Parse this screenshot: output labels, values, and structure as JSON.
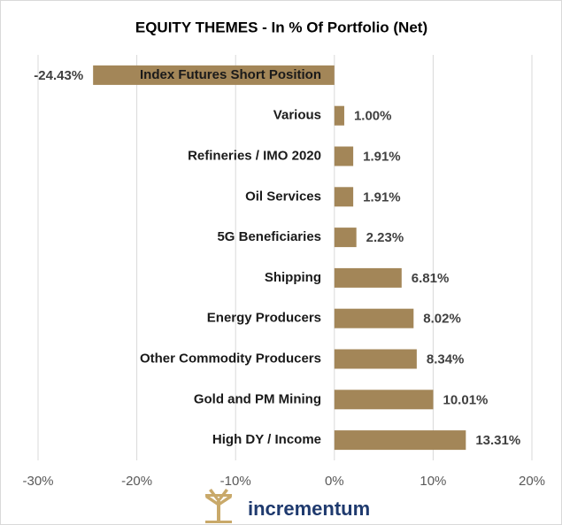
{
  "chart_data": {
    "type": "bar",
    "orientation": "horizontal",
    "title": "EQUITY THEMES - In % Of Portfolio (Net)",
    "categories": [
      "Index Futures Short Position",
      "Various",
      "Refineries / IMO 2020",
      "Oil Services",
      "5G Beneficiaries",
      "Shipping",
      "Energy Producers",
      "Other Commodity Producers",
      "Gold and PM Mining",
      "High DY / Income"
    ],
    "values": [
      -24.43,
      1.0,
      1.91,
      1.91,
      2.23,
      6.81,
      8.02,
      8.34,
      10.01,
      13.31
    ],
    "value_labels": [
      "-24.43%",
      "1.00%",
      "1.91%",
      "1.91%",
      "2.23%",
      "6.81%",
      "8.02%",
      "8.34%",
      "10.01%",
      "13.31%"
    ],
    "color": "#a38658",
    "xlim": [
      -30,
      20
    ],
    "xticks": [
      {
        "value": -30,
        "label": "-30%"
      },
      {
        "value": -20,
        "label": "-20%"
      },
      {
        "value": -10,
        "label": "-10%"
      },
      {
        "value": 0,
        "label": "0%"
      },
      {
        "value": 10,
        "label": "10%"
      },
      {
        "value": 20,
        "label": "20%"
      }
    ],
    "grid": true
  },
  "logo": {
    "text": "incrementum"
  }
}
